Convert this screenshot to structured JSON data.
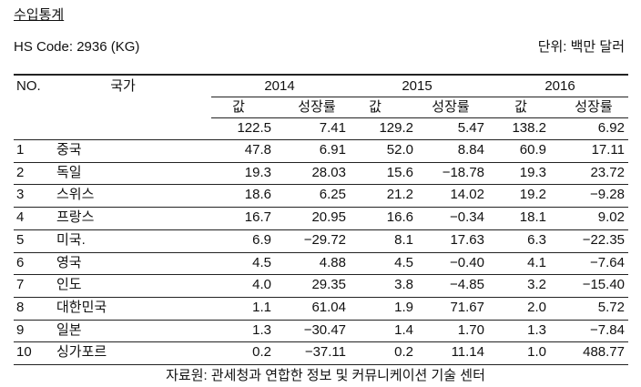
{
  "header": {
    "title": "수입통계",
    "subtitle": "HS Code: 2936 (KG)",
    "unit": "단위: 백만 달러"
  },
  "table": {
    "columns": [
      "NO.",
      "국가"
    ],
    "years": [
      "2014",
      "2015",
      "2016"
    ],
    "subcolumns": [
      "값",
      "성장률"
    ],
    "total": [
      "122.5",
      "7.41",
      "129.2",
      "5.47",
      "138.2",
      "6.92"
    ],
    "rows": [
      [
        "1",
        "중국",
        "47.8",
        "6.91",
        "52.0",
        "8.84",
        "60.9",
        "17.11"
      ],
      [
        "2",
        "독일",
        "19.3",
        "28.03",
        "15.6",
        "−18.78",
        "19.3",
        "23.72"
      ],
      [
        "3",
        "스위스",
        "18.6",
        "6.25",
        "21.2",
        "14.02",
        "19.2",
        "−9.28"
      ],
      [
        "4",
        "프랑스",
        "16.7",
        "20.95",
        "16.6",
        "−0.34",
        "18.1",
        "9.02"
      ],
      [
        "5",
        "미국.",
        "6.9",
        "−29.72",
        "8.1",
        "17.63",
        "6.3",
        "−22.35"
      ],
      [
        "6",
        "영국",
        "4.5",
        "4.88",
        "4.5",
        "−0.40",
        "4.1",
        "−7.64"
      ],
      [
        "7",
        "인도",
        "4.0",
        "29.35",
        "3.8",
        "−4.85",
        "3.2",
        "−15.40"
      ],
      [
        "8",
        "대한민국",
        "1.1",
        "61.04",
        "1.9",
        "71.67",
        "2.0",
        "5.72"
      ],
      [
        "9",
        "일본",
        "1.3",
        "−30.47",
        "1.4",
        "1.70",
        "1.3",
        "−7.84"
      ],
      [
        "10",
        "싱가포르",
        "0.2",
        "−37.11",
        "0.2",
        "11.14",
        "1.0",
        "488.77"
      ]
    ]
  },
  "source": "자료원: 관세청과 연합한 정보 및 커뮤니케이션 기술 센터"
}
